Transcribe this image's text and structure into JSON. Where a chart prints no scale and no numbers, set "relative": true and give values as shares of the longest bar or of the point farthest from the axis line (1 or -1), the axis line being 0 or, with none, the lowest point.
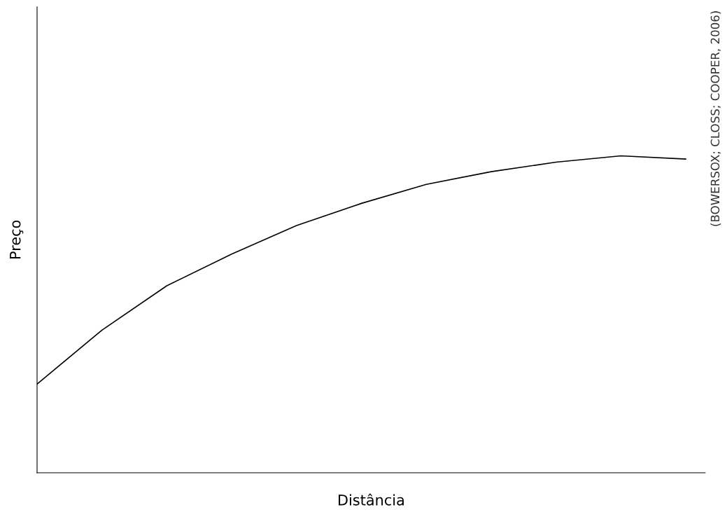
{
  "chart_data": {
    "type": "line",
    "relative": true,
    "xlabel": "Distância",
    "ylabel": "Preço",
    "annotations": [
      "(BOWERSOX; CLOSS; COOPER, 2006)"
    ],
    "categories": [
      null,
      null,
      null,
      null,
      null,
      null,
      null,
      null,
      null,
      null,
      null
    ],
    "series": [
      {
        "color": "#000000",
        "values": [
          0.28,
          0.45,
          0.59,
          0.69,
          0.78,
          0.85,
          0.91,
          0.95,
          0.98,
          1.0,
          0.99
        ]
      }
    ],
    "grid": false,
    "legend": false,
    "marker": "none",
    "line_style": "solid",
    "tick_labels": false
  }
}
